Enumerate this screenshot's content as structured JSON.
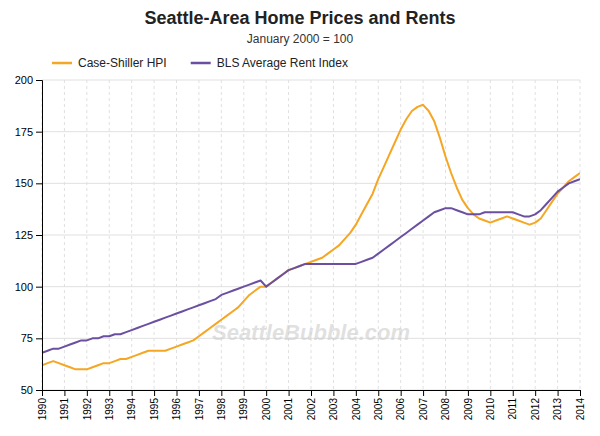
{
  "chart_data": {
    "type": "line",
    "title": "Seattle-Area Home Prices and Rents",
    "subtitle": "January 2000 = 100",
    "annotations": [
      "SeattleBubble.com"
    ],
    "x": [
      1990.0,
      1990.25,
      1990.5,
      1990.75,
      1991.0,
      1991.25,
      1991.5,
      1991.75,
      1992.0,
      1992.25,
      1992.5,
      1992.75,
      1993.0,
      1993.25,
      1993.5,
      1993.75,
      1994.0,
      1994.25,
      1994.5,
      1994.75,
      1995.0,
      1995.25,
      1995.5,
      1995.75,
      1996.0,
      1996.25,
      1996.5,
      1996.75,
      1997.0,
      1997.25,
      1997.5,
      1997.75,
      1998.0,
      1998.25,
      1998.5,
      1998.75,
      1999.0,
      1999.25,
      1999.5,
      1999.75,
      2000.0,
      2000.25,
      2000.5,
      2000.75,
      2001.0,
      2001.25,
      2001.5,
      2001.75,
      2002.0,
      2002.25,
      2002.5,
      2002.75,
      2003.0,
      2003.25,
      2003.5,
      2003.75,
      2004.0,
      2004.25,
      2004.5,
      2004.75,
      2005.0,
      2005.25,
      2005.5,
      2005.75,
      2006.0,
      2006.25,
      2006.5,
      2006.75,
      2007.0,
      2007.25,
      2007.5,
      2007.75,
      2008.0,
      2008.25,
      2008.5,
      2008.75,
      2009.0,
      2009.25,
      2009.5,
      2009.75,
      2010.0,
      2010.25,
      2010.5,
      2010.75,
      2011.0,
      2011.25,
      2011.5,
      2011.75,
      2012.0,
      2012.25,
      2012.5,
      2012.75,
      2013.0,
      2013.25,
      2013.5,
      2013.75,
      2014.0
    ],
    "series": [
      {
        "name": "Case-Shiller HPI",
        "color": "#F5A623",
        "values": [
          62,
          63,
          64,
          63,
          62,
          61,
          60,
          60,
          60,
          61,
          62,
          63,
          63,
          64,
          65,
          65,
          66,
          67,
          68,
          69,
          69,
          69,
          69,
          70,
          71,
          72,
          73,
          74,
          76,
          78,
          80,
          82,
          84,
          86,
          88,
          90,
          93,
          96,
          98,
          100,
          100,
          102,
          104,
          106,
          108,
          109,
          110,
          111,
          112,
          113,
          114,
          116,
          118,
          120,
          123,
          126,
          130,
          135,
          140,
          145,
          152,
          158,
          164,
          170,
          176,
          181,
          185,
          187,
          188,
          185,
          180,
          172,
          163,
          155,
          148,
          142,
          138,
          135,
          133,
          132,
          131,
          132,
          133,
          134,
          133,
          132,
          131,
          130,
          131,
          133,
          137,
          141,
          145,
          148,
          151,
          153,
          155
        ]
      },
      {
        "name": "BLS Average Rent Index",
        "color": "#6B4FA0",
        "values": [
          68,
          69,
          70,
          70,
          71,
          72,
          73,
          74,
          74,
          75,
          75,
          76,
          76,
          77,
          77,
          78,
          79,
          80,
          81,
          82,
          83,
          84,
          85,
          86,
          87,
          88,
          89,
          90,
          91,
          92,
          93,
          94,
          96,
          97,
          98,
          99,
          100,
          101,
          102,
          103,
          100,
          102,
          104,
          106,
          108,
          109,
          110,
          111,
          111,
          111,
          111,
          111,
          111,
          111,
          111,
          111,
          111,
          112,
          113,
          114,
          116,
          118,
          120,
          122,
          124,
          126,
          128,
          130,
          132,
          134,
          136,
          137,
          138,
          138,
          137,
          136,
          135,
          135,
          135,
          136,
          136,
          136,
          136,
          136,
          136,
          135,
          134,
          134,
          135,
          137,
          140,
          143,
          146,
          148,
          150,
          151,
          152
        ]
      }
    ],
    "xlim": [
      1990,
      2014
    ],
    "xticks": [
      1990,
      1991,
      1992,
      1993,
      1994,
      1995,
      1996,
      1997,
      1998,
      1999,
      2000,
      2001,
      2002,
      2003,
      2004,
      2005,
      2006,
      2007,
      2008,
      2009,
      2010,
      2011,
      2012,
      2013,
      2014
    ],
    "ylim": [
      50,
      200
    ],
    "yticks": [
      50,
      75,
      100,
      125,
      150,
      175,
      200
    ],
    "grid": true,
    "legend": "top"
  }
}
